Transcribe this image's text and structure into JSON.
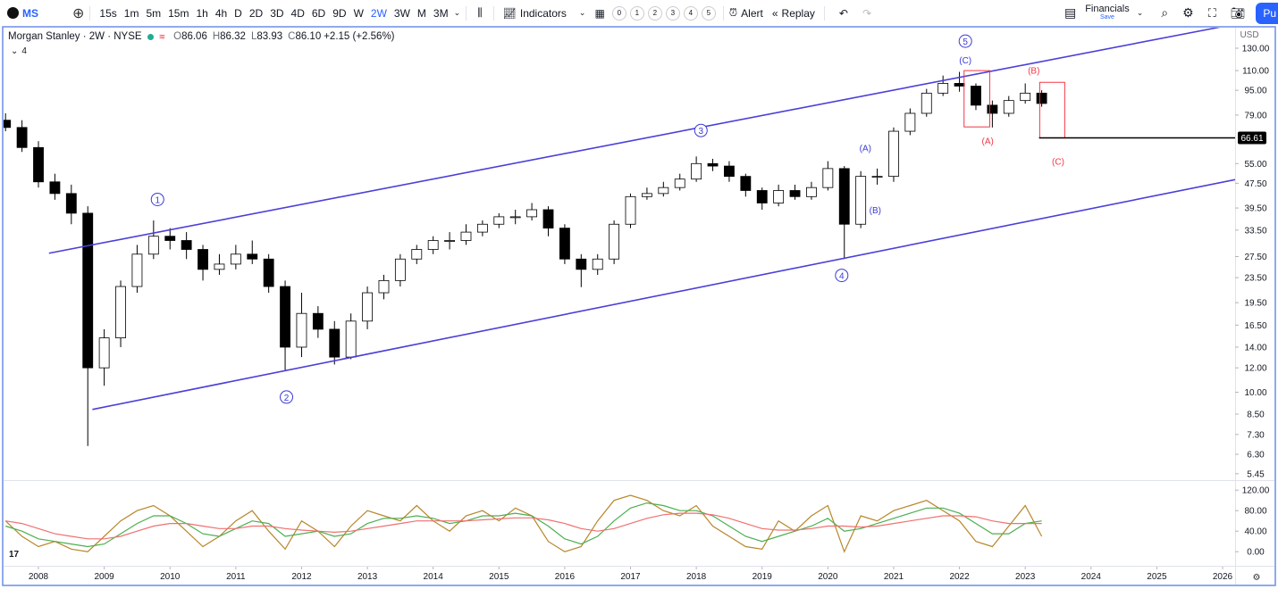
{
  "toolbar": {
    "symbol": "MS",
    "intervals": [
      "15s",
      "1m",
      "5m",
      "15m",
      "1h",
      "4h",
      "D",
      "2D",
      "3D",
      "4D",
      "6D",
      "9D",
      "W",
      "2W",
      "3W",
      "M",
      "3M"
    ],
    "active_interval": "2W",
    "indicators": "Indicators",
    "layouts": [
      "0",
      "1",
      "2",
      "3",
      "4",
      "5"
    ],
    "alert": "Alert",
    "replay": "Replay",
    "financials": "Financials",
    "save": "Save",
    "publish": "Pu"
  },
  "chart_data": {
    "type": "candlestick",
    "title": "Morgan Stanley · 2W · NYSE",
    "ohlc": [
      [
        "O",
        "86.06"
      ],
      [
        "H",
        "86.32"
      ],
      [
        "L",
        "83.93"
      ],
      [
        "C",
        "86.10"
      ]
    ],
    "change": "+2.15 (+2.56%)",
    "indicator_count": "4",
    "currency": "USD",
    "x": [
      2007.5,
      2007.75,
      2008,
      2008.25,
      2008.5,
      2008.75,
      2009,
      2009.25,
      2009.5,
      2009.75,
      2010,
      2010.25,
      2010.5,
      2010.75,
      2011,
      2011.25,
      2011.5,
      2011.75,
      2012,
      2012.25,
      2012.5,
      2012.75,
      2013,
      2013.25,
      2013.5,
      2013.75,
      2014,
      2014.25,
      2014.5,
      2014.75,
      2015,
      2015.25,
      2015.5,
      2015.75,
      2016,
      2016.25,
      2016.5,
      2016.75,
      2017,
      2017.25,
      2017.5,
      2017.75,
      2018,
      2018.25,
      2018.5,
      2018.75,
      2019,
      2019.25,
      2019.5,
      2019.75,
      2020,
      2020.25,
      2020.5,
      2020.75,
      2021,
      2021.25,
      2021.5,
      2021.75,
      2022,
      2022.25,
      2022.5,
      2022.75,
      2023,
      2023.25
    ],
    "open": [
      76,
      72,
      62,
      48,
      44,
      38,
      12,
      15,
      22,
      28,
      32,
      31,
      29,
      25,
      26,
      28,
      27,
      22,
      14,
      18,
      16,
      13,
      17,
      21,
      23,
      27,
      29,
      31,
      31,
      33,
      35,
      37,
      37,
      39,
      34,
      27,
      25,
      27,
      35,
      43,
      44,
      46,
      49,
      55,
      54,
      50,
      45,
      41,
      45,
      43,
      46,
      53,
      35,
      50,
      50,
      70,
      80,
      93,
      100,
      98,
      85,
      80,
      88,
      93
    ],
    "high": [
      80,
      76,
      65,
      51,
      47,
      40,
      16,
      23,
      30,
      36,
      34,
      33,
      30,
      28,
      30,
      31,
      28,
      23,
      21,
      19,
      17,
      18,
      22,
      24,
      28,
      30,
      32,
      33,
      35,
      36,
      38,
      39,
      41,
      40,
      35,
      28,
      28,
      36,
      44,
      46,
      48,
      51,
      58,
      57,
      56,
      51,
      46,
      47,
      47,
      48,
      56,
      54,
      52,
      53,
      72,
      83,
      96,
      106,
      109,
      100,
      88,
      91,
      100,
      95
    ],
    "low": [
      70,
      60,
      46,
      42,
      35,
      6.7,
      10.5,
      14,
      21,
      27,
      29,
      27,
      23,
      24,
      25,
      26,
      21,
      11.8,
      13,
      15,
      12.3,
      12.8,
      16,
      20,
      22,
      26,
      28,
      29,
      30,
      32,
      34,
      35,
      36,
      32,
      26,
      21.9,
      24,
      26,
      34,
      42,
      43,
      45,
      48,
      52,
      48,
      43,
      39,
      40,
      42,
      42,
      45,
      27,
      34,
      47,
      48,
      68,
      78,
      91,
      94,
      82,
      72,
      78,
      86,
      84
    ],
    "close": [
      72,
      62,
      48,
      44,
      38,
      12,
      15,
      22,
      28,
      32,
      31,
      29,
      25,
      26,
      28,
      27,
      22,
      14,
      18,
      16,
      13,
      17,
      21,
      23,
      27,
      29,
      31,
      31,
      33,
      35,
      37,
      37,
      39,
      34,
      27,
      25,
      27,
      35,
      43,
      44,
      46,
      49,
      55,
      54,
      50,
      45,
      41,
      45,
      43,
      46,
      53,
      35,
      50,
      50,
      70,
      80,
      93,
      100,
      98,
      85,
      80,
      88,
      93,
      86.1
    ],
    "up_color": "#ffffff",
    "down_color": "#000000",
    "wick_color": "#000000",
    "xlim": [
      2007.47,
      2026.19
    ],
    "ylim": [
      5.23,
      151.5
    ],
    "log_scale": true,
    "xticks": [
      2008,
      2009,
      2010,
      2011,
      2012,
      2013,
      2014,
      2015,
      2016,
      2017,
      2018,
      2019,
      2020,
      2021,
      2022,
      2023,
      2024,
      2025,
      2026
    ],
    "yticks": [
      5.45,
      {
        "value": 6.3,
        "label": "6.30"
      },
      {
        "value": 7.3,
        "label": "7.30"
      },
      {
        "value": 8.5,
        "label": "8.50"
      },
      {
        "value": 10,
        "label": "10.00"
      },
      {
        "value": 12,
        "label": "12.00"
      },
      {
        "value": 14,
        "label": "14.00"
      },
      {
        "value": 16.5,
        "label": "16.50"
      },
      {
        "value": 19.5,
        "label": "19.50"
      },
      {
        "value": 23.5,
        "label": "23.50"
      },
      {
        "value": 27.5,
        "label": "27.50"
      },
      {
        "value": 33.5,
        "label": "33.50"
      },
      {
        "value": 39.5,
        "label": "39.50"
      },
      {
        "value": 47.5,
        "label": "47.50"
      },
      {
        "value": 55,
        "label": "55.00"
      },
      {
        "value": 79,
        "label": "79.00"
      },
      {
        "value": 95,
        "label": "95.00"
      },
      {
        "value": 110,
        "label": "110.00"
      },
      {
        "value": 130,
        "label": "130.00"
      }
    ],
    "trendlines": [
      {
        "x": [
          2008.16,
          2025.95
        ],
        "y": [
          28.2,
          152
        ],
        "color": "#4a3fd8"
      },
      {
        "x": [
          2008.82,
          2026.19
        ],
        "y": [
          8.8,
          48.8
        ],
        "color": "#4a3fd8"
      }
    ],
    "hline": {
      "value": 66.61,
      "x0": 2023.21,
      "color": "#000000"
    },
    "boxes": [
      {
        "x": [
          2022.07,
          2022.46
        ],
        "y": [
          110,
          72.3
        ],
        "color": "#f23645"
      },
      {
        "x": [
          2023.22,
          2023.6
        ],
        "y": [
          100.8,
          66.6
        ],
        "color": "#f23645"
      }
    ],
    "wave_labels": [
      {
        "text": "1",
        "x": 2009.81,
        "y": 42.1,
        "color": "#3a3ad6",
        "circled": true
      },
      {
        "text": "2",
        "x": 2011.77,
        "y": 9.65,
        "color": "#3a3ad6",
        "circled": true
      },
      {
        "text": "3",
        "x": 2018.07,
        "y": 70.4,
        "color": "#3a3ad6",
        "circled": true
      },
      {
        "text": "4",
        "x": 2020.21,
        "y": 23.9,
        "color": "#3a3ad6",
        "circled": true
      },
      {
        "text": "5",
        "x": 2022.09,
        "y": 137,
        "color": "#3a3ad6",
        "circled": true
      },
      {
        "text": "(C)",
        "x": 2022.09,
        "y": 120,
        "color": "#3a3ad6",
        "circled": false
      },
      {
        "text": "(A)",
        "x": 2020.57,
        "y": 62.4,
        "color": "#3a3ad6",
        "circled": false
      },
      {
        "text": "(B)",
        "x": 2020.72,
        "y": 39.2,
        "color": "#3a3ad6",
        "circled": false
      },
      {
        "text": "(B)",
        "x": 2023.13,
        "y": 111.3,
        "color": "#f23645",
        "circled": false
      },
      {
        "text": "(A)",
        "x": 2022.43,
        "y": 65.8,
        "color": "#f23645",
        "circled": false
      },
      {
        "text": "(C)",
        "x": 2023.5,
        "y": 56.5,
        "color": "#f23645",
        "circled": false
      }
    ],
    "oscillator": {
      "ylim": [
        -24,
        136
      ],
      "yticks": [
        {
          "value": 0,
          "label": "0.00"
        },
        {
          "value": 40,
          "label": "40.00"
        },
        {
          "value": 80,
          "label": "80.00"
        },
        {
          "value": 120,
          "label": "120.00"
        }
      ],
      "series": [
        {
          "color": "#b8862b",
          "values": [
            60,
            30,
            10,
            20,
            5,
            0,
            30,
            60,
            80,
            90,
            70,
            40,
            10,
            30,
            60,
            80,
            40,
            5,
            60,
            40,
            10,
            50,
            80,
            70,
            60,
            90,
            60,
            40,
            70,
            80,
            60,
            85,
            70,
            20,
            0,
            10,
            60,
            100,
            110,
            100,
            80,
            70,
            90,
            50,
            30,
            10,
            5,
            60,
            40,
            70,
            90,
            0,
            70,
            60,
            80,
            90,
            100,
            80,
            60,
            20,
            10,
            50,
            90,
            30
          ]
        },
        {
          "color": "#4caf50",
          "values": [
            50,
            40,
            25,
            20,
            15,
            10,
            15,
            35,
            55,
            70,
            70,
            55,
            35,
            30,
            45,
            60,
            55,
            30,
            35,
            40,
            30,
            35,
            55,
            65,
            65,
            70,
            65,
            55,
            60,
            70,
            70,
            75,
            70,
            50,
            25,
            15,
            30,
            60,
            85,
            95,
            90,
            80,
            80,
            70,
            50,
            30,
            20,
            30,
            40,
            50,
            65,
            40,
            45,
            55,
            65,
            75,
            85,
            85,
            75,
            55,
            35,
            35,
            55,
            60
          ]
        },
        {
          "color": "#f07070",
          "values": [
            60,
            55,
            45,
            35,
            30,
            25,
            25,
            30,
            40,
            50,
            55,
            55,
            50,
            45,
            45,
            50,
            50,
            45,
            42,
            40,
            38,
            40,
            45,
            50,
            55,
            60,
            60,
            60,
            60,
            62,
            64,
            66,
            66,
            62,
            55,
            45,
            40,
            45,
            55,
            65,
            72,
            75,
            75,
            72,
            65,
            55,
            45,
            42,
            42,
            45,
            50,
            50,
            48,
            50,
            55,
            60,
            65,
            70,
            70,
            68,
            60,
            55,
            55,
            55
          ]
        }
      ]
    }
  }
}
